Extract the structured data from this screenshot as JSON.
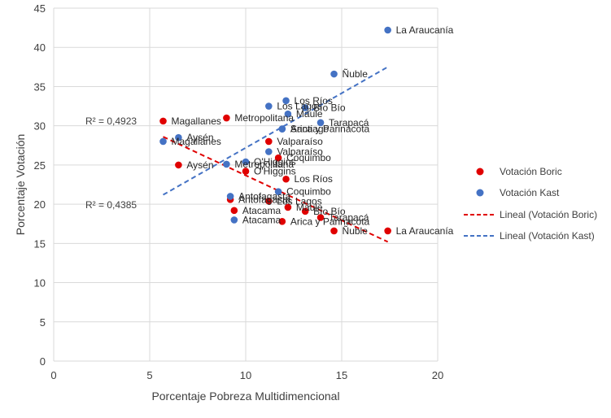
{
  "chart_data": {
    "type": "scatter",
    "xlabel": "Porcentaje Pobreza  Multidimencional",
    "ylabel": "Porcentaje Votación",
    "xlim": [
      0,
      20
    ],
    "ylim": [
      0,
      45
    ],
    "x_ticks": [
      "0",
      "5",
      "10",
      "15",
      "20"
    ],
    "y_ticks": [
      "0",
      "5",
      "10",
      "15",
      "20",
      "25",
      "30",
      "35",
      "40",
      "45"
    ],
    "grid": true,
    "legend_position": "right",
    "series": [
      {
        "name": "Votación Boric",
        "color": "#e00000",
        "points": [
          {
            "label": "Magallanes",
            "x": 5.7,
            "y": 30.6
          },
          {
            "label": "Aysén",
            "x": 6.5,
            "y": 25.0
          },
          {
            "label": "Metropolitana",
            "x": 9.0,
            "y": 31.0
          },
          {
            "label": "O'Higgins",
            "x": 10.0,
            "y": 24.2
          },
          {
            "label": "Valparaíso",
            "x": 11.2,
            "y": 28.0
          },
          {
            "label": "Coquimbo",
            "x": 11.7,
            "y": 25.9
          },
          {
            "label": "Los Ríos",
            "x": 12.1,
            "y": 23.2
          },
          {
            "label": "Antofagasta",
            "x": 9.2,
            "y": 20.6
          },
          {
            "label": "Los Lagos",
            "x": 11.2,
            "y": 20.4
          },
          {
            "label": "Atacama",
            "x": 9.4,
            "y": 19.2
          },
          {
            "label": "Maule",
            "x": 12.2,
            "y": 19.6
          },
          {
            "label": "Bío Bío",
            "x": 13.1,
            "y": 19.1
          },
          {
            "label": "Tarapacá",
            "x": 13.9,
            "y": 18.3
          },
          {
            "label": "Arica y Parinacota",
            "x": 11.9,
            "y": 17.8
          },
          {
            "label": "Ñuble",
            "x": 14.6,
            "y": 16.6
          },
          {
            "label": "La Araucanía",
            "x": 17.4,
            "y": 16.6
          }
        ]
      },
      {
        "name": "Votación Kast",
        "color": "#4472c4",
        "points": [
          {
            "label": "Magallanes",
            "x": 5.7,
            "y": 28.0
          },
          {
            "label": "Aysén",
            "x": 6.5,
            "y": 28.5
          },
          {
            "label": "Metropolitana",
            "x": 9.0,
            "y": 25.1
          },
          {
            "label": "O'Higgins",
            "x": 10.0,
            "y": 25.4
          },
          {
            "label": "Valparaíso",
            "x": 11.2,
            "y": 26.7
          },
          {
            "label": "Santiago",
            "x": 11.9,
            "y": 29.6
          },
          {
            "label": "Los Ríos",
            "x": 12.1,
            "y": 33.2
          },
          {
            "label": "Los Lagos",
            "x": 11.2,
            "y": 32.5
          },
          {
            "label": "Bío Bío",
            "x": 13.1,
            "y": 32.3
          },
          {
            "label": "Maule",
            "x": 12.2,
            "y": 31.5
          },
          {
            "label": "Tarapacá",
            "x": 13.9,
            "y": 30.4
          },
          {
            "label": "Arica y Parinacota",
            "x": 11.9,
            "y": 29.6
          },
          {
            "label": "Coquimbo",
            "x": 11.7,
            "y": 21.6
          },
          {
            "label": "Antofagasta",
            "x": 9.2,
            "y": 21.0
          },
          {
            "label": "Atacama",
            "x": 9.4,
            "y": 18.0
          },
          {
            "label": "Ñuble",
            "x": 14.6,
            "y": 36.6
          },
          {
            "label": "La Araucanía",
            "x": 17.4,
            "y": 42.2
          }
        ]
      }
    ],
    "trendlines": [
      {
        "name": "Lineal (Votación Boric)",
        "color": "#e00000",
        "x": [
          5.7,
          17.4
        ],
        "y": [
          28.6,
          15.2
        ],
        "r2_label": "R² = 0,4385"
      },
      {
        "name": "Lineal (Votación Kast)",
        "color": "#4472c4",
        "x": [
          5.7,
          17.4
        ],
        "y": [
          21.2,
          37.5
        ],
        "r2_label": "R² = 0,4923"
      }
    ]
  }
}
